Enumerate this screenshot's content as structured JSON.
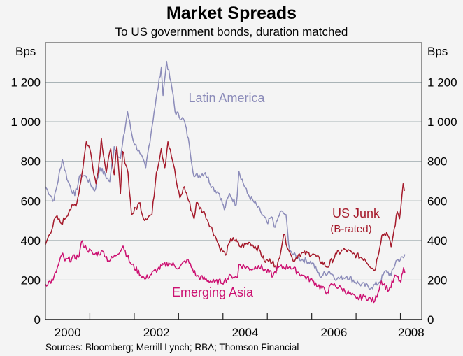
{
  "chart_data": {
    "type": "line",
    "title": "Market Spreads",
    "subtitle": "To US government bonds, duration matched",
    "ylabel_left": "Bps",
    "ylabel_right": "Bps",
    "ylim": [
      0,
      1400
    ],
    "xlim": [
      2000,
      2008.48
    ],
    "yticks": [
      0,
      200,
      400,
      600,
      800,
      1000,
      1200
    ],
    "ytick_labels": [
      "0",
      "200",
      "400",
      "600",
      "800",
      "1 000",
      "1 200"
    ],
    "xtick_years": [
      2001,
      2002,
      2003,
      2004,
      2005,
      2006,
      2007,
      2008
    ],
    "xlabels": [
      {
        "label": "2000",
        "at": 2000.5
      },
      {
        "label": "2002",
        "at": 2002.5
      },
      {
        "label": "2004",
        "at": 2004.5
      },
      {
        "label": "2006",
        "at": 2006.5
      },
      {
        "label": "2008",
        "at": 2008.24
      }
    ],
    "grid": true,
    "source": "Sources: Bloomberg; Merrill Lynch; RBA; Thomson Financial",
    "series": [
      {
        "name": "Latin America",
        "label_lines": [
          "Latin America"
        ],
        "color": "#8b8bb9",
        "points": [
          [
            2000.0,
            672
          ],
          [
            2000.19,
            602
          ],
          [
            2000.38,
            810
          ],
          [
            2000.51,
            697
          ],
          [
            2000.66,
            627
          ],
          [
            2000.79,
            733
          ],
          [
            2000.92,
            722
          ],
          [
            2001.11,
            651
          ],
          [
            2001.23,
            768
          ],
          [
            2001.45,
            697
          ],
          [
            2001.55,
            874
          ],
          [
            2001.69,
            814
          ],
          [
            2001.85,
            1051
          ],
          [
            2001.97,
            910
          ],
          [
            2002.13,
            839
          ],
          [
            2002.26,
            768
          ],
          [
            2002.45,
            1051
          ],
          [
            2002.61,
            1274
          ],
          [
            2002.65,
            1133
          ],
          [
            2002.73,
            1306
          ],
          [
            2002.88,
            1133
          ],
          [
            2002.92,
            1051
          ],
          [
            2003.13,
            1005
          ],
          [
            2003.24,
            885
          ],
          [
            2003.35,
            722
          ],
          [
            2003.6,
            743
          ],
          [
            2003.76,
            672
          ],
          [
            2003.92,
            637
          ],
          [
            2004.03,
            556
          ],
          [
            2004.15,
            637
          ],
          [
            2004.3,
            580
          ],
          [
            2004.36,
            750
          ],
          [
            2004.55,
            637
          ],
          [
            2004.71,
            591
          ],
          [
            2004.85,
            545
          ],
          [
            2005.01,
            485
          ],
          [
            2005.09,
            520
          ],
          [
            2005.18,
            467
          ],
          [
            2005.29,
            545
          ],
          [
            2005.42,
            531
          ],
          [
            2005.48,
            379
          ],
          [
            2005.56,
            333
          ],
          [
            2005.69,
            312
          ],
          [
            2006.02,
            287
          ],
          [
            2006.18,
            219
          ],
          [
            2006.4,
            244
          ],
          [
            2006.57,
            205
          ],
          [
            2006.79,
            219
          ],
          [
            2007.08,
            180
          ],
          [
            2007.35,
            163
          ],
          [
            2007.52,
            188
          ],
          [
            2007.68,
            248
          ],
          [
            2007.79,
            223
          ],
          [
            2007.9,
            297
          ],
          [
            2008.07,
            312
          ],
          [
            2008.1,
            330
          ]
        ]
      },
      {
        "name": "US Junk (B-rated)",
        "label_lines": [
          "US Junk",
          "(B-rated)"
        ],
        "color": "#a51a2b",
        "points": [
          [
            2000.0,
            379
          ],
          [
            2000.24,
            520
          ],
          [
            2000.36,
            485
          ],
          [
            2000.55,
            556
          ],
          [
            2000.71,
            591
          ],
          [
            2000.82,
            733
          ],
          [
            2000.92,
            899
          ],
          [
            2001.0,
            864
          ],
          [
            2001.14,
            687
          ],
          [
            2001.23,
            828
          ],
          [
            2001.26,
            917
          ],
          [
            2001.37,
            743
          ],
          [
            2001.47,
            864
          ],
          [
            2001.55,
            733
          ],
          [
            2001.61,
            874
          ],
          [
            2001.69,
            637
          ],
          [
            2001.74,
            850
          ],
          [
            2001.86,
            743
          ],
          [
            2001.94,
            531
          ],
          [
            2002.13,
            591
          ],
          [
            2002.21,
            510
          ],
          [
            2002.4,
            531
          ],
          [
            2002.5,
            743
          ],
          [
            2002.61,
            864
          ],
          [
            2002.69,
            768
          ],
          [
            2002.76,
            899
          ],
          [
            2002.89,
            779
          ],
          [
            2002.95,
            697
          ],
          [
            2003.03,
            616
          ],
          [
            2003.13,
            672
          ],
          [
            2003.35,
            510
          ],
          [
            2003.4,
            591
          ],
          [
            2003.6,
            531
          ],
          [
            2003.82,
            425
          ],
          [
            2003.92,
            368
          ],
          [
            2004.06,
            326
          ],
          [
            2004.15,
            389
          ],
          [
            2004.23,
            414
          ],
          [
            2004.39,
            368
          ],
          [
            2004.61,
            389
          ],
          [
            2004.82,
            354
          ],
          [
            2004.93,
            297
          ],
          [
            2005.13,
            297
          ],
          [
            2005.21,
            248
          ],
          [
            2005.37,
            432
          ],
          [
            2005.5,
            343
          ],
          [
            2005.58,
            297
          ],
          [
            2005.72,
            333
          ],
          [
            2006.03,
            333
          ],
          [
            2006.35,
            265
          ],
          [
            2006.56,
            333
          ],
          [
            2006.75,
            354
          ],
          [
            2006.92,
            333
          ],
          [
            2007.19,
            308
          ],
          [
            2007.42,
            248
          ],
          [
            2007.58,
            425
          ],
          [
            2007.69,
            442
          ],
          [
            2007.79,
            368
          ],
          [
            2007.93,
            545
          ],
          [
            2007.98,
            510
          ],
          [
            2008.06,
            687
          ],
          [
            2008.09,
            651
          ]
        ]
      },
      {
        "name": "Emerging Asia",
        "label_lines": [
          "Emerging Asia"
        ],
        "color": "#cc1071",
        "points": [
          [
            2000.0,
            180
          ],
          [
            2000.17,
            198
          ],
          [
            2000.39,
            336
          ],
          [
            2000.44,
            297
          ],
          [
            2000.76,
            322
          ],
          [
            2000.81,
            393
          ],
          [
            2000.92,
            361
          ],
          [
            2001.09,
            329
          ],
          [
            2001.31,
            343
          ],
          [
            2001.42,
            297
          ],
          [
            2001.58,
            322
          ],
          [
            2001.75,
            372
          ],
          [
            2001.91,
            287
          ],
          [
            2002.24,
            205
          ],
          [
            2002.53,
            255
          ],
          [
            2002.78,
            287
          ],
          [
            2003.02,
            262
          ],
          [
            2003.19,
            304
          ],
          [
            2003.41,
            219
          ],
          [
            2003.81,
            188
          ],
          [
            2004.03,
            195
          ],
          [
            2004.19,
            223
          ],
          [
            2004.33,
            212
          ],
          [
            2004.36,
            280
          ],
          [
            2004.63,
            255
          ],
          [
            2004.8,
            273
          ],
          [
            2005.13,
            223
          ],
          [
            2005.24,
            262
          ],
          [
            2005.51,
            269
          ],
          [
            2005.8,
            223
          ],
          [
            2006.02,
            195
          ],
          [
            2006.35,
            138
          ],
          [
            2006.46,
            180
          ],
          [
            2006.68,
            156
          ],
          [
            2007.01,
            106
          ],
          [
            2007.19,
            117
          ],
          [
            2007.42,
            92
          ],
          [
            2007.57,
            195
          ],
          [
            2007.74,
            149
          ],
          [
            2007.9,
            223
          ],
          [
            2008.01,
            188
          ],
          [
            2008.07,
            262
          ],
          [
            2008.1,
            237
          ]
        ]
      }
    ]
  }
}
